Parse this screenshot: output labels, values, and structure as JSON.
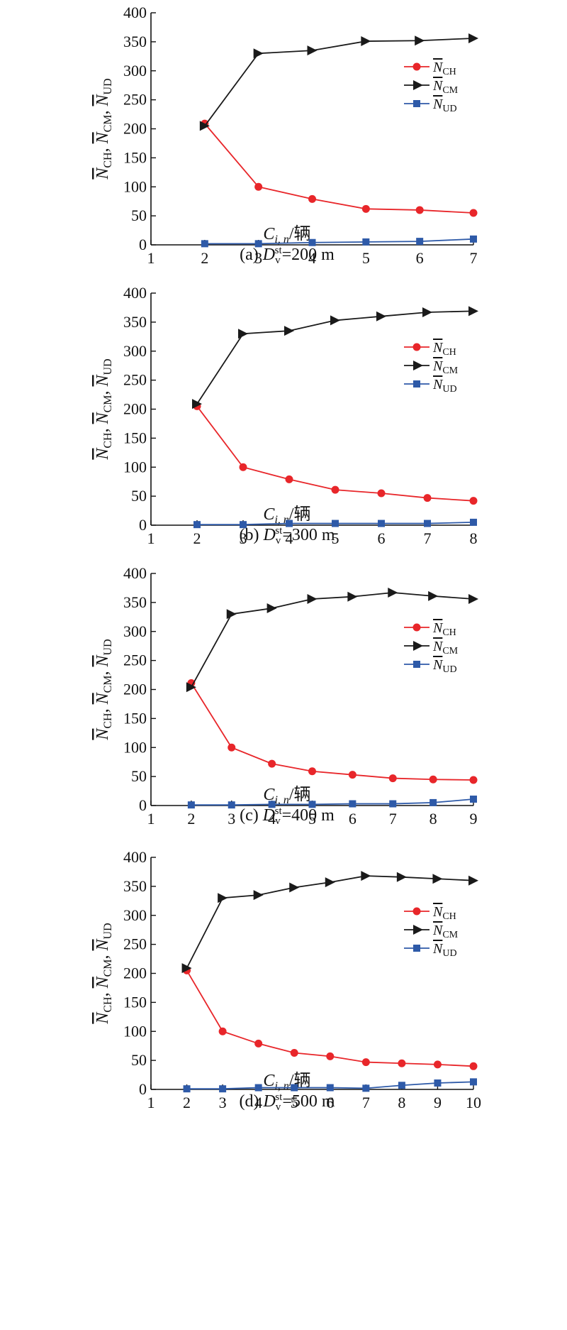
{
  "chart_data": [
    {
      "type": "line",
      "ylabel": "N̄CH, N̄CM, N̄UD",
      "ylabel_parts": [
        "N",
        "CH",
        ", ",
        "N",
        "CM",
        ", ",
        "N",
        "UD"
      ],
      "xlabel": "Ci, n/辆",
      "xlabel_parts": [
        "C",
        "i, n",
        "/辆"
      ],
      "caption": "(a) Dvst=200 m",
      "caption_parts": [
        "(a) ",
        "D",
        "v",
        "st",
        "=200 m"
      ],
      "xlim": [
        1,
        7
      ],
      "ylim": [
        0,
        400
      ],
      "xticks": [
        "1",
        "2",
        "3",
        "4",
        "5",
        "6",
        "7"
      ],
      "yticks": [
        "0",
        "50",
        "100",
        "150",
        "200",
        "250",
        "300",
        "350",
        "400"
      ],
      "legend_position": "upper right",
      "x": [
        2,
        3,
        4,
        5,
        6,
        7
      ],
      "series": [
        {
          "name": "N̄CH",
          "name_parts": [
            "N",
            "CH"
          ],
          "color": "#e8262a",
          "marker": "circle",
          "values": [
            209,
            100,
            79,
            62,
            60,
            55
          ]
        },
        {
          "name": "N̄CM",
          "name_parts": [
            "N",
            "CM"
          ],
          "color": "#1a1a1a",
          "marker": "triangle-right",
          "values": [
            205,
            330,
            335,
            351,
            352,
            356
          ]
        },
        {
          "name": "N̄UD",
          "name_parts": [
            "N",
            "UD"
          ],
          "color": "#2e5aa8",
          "marker": "square",
          "values": [
            2,
            2,
            4,
            5,
            6,
            10
          ]
        }
      ]
    },
    {
      "type": "line",
      "ylabel": "N̄CH, N̄CM, N̄UD",
      "ylabel_parts": [
        "N",
        "CH",
        ", ",
        "N",
        "CM",
        ", ",
        "N",
        "UD"
      ],
      "xlabel": "Ci, n/辆",
      "xlabel_parts": [
        "C",
        "i, n",
        "/辆"
      ],
      "caption": "(b) Dvst=300 m",
      "caption_parts": [
        "(b) ",
        "D",
        "v",
        "st",
        "=300 m"
      ],
      "xlim": [
        1,
        8
      ],
      "ylim": [
        0,
        400
      ],
      "xticks": [
        "1",
        "2",
        "3",
        "4",
        "5",
        "6",
        "7",
        "8"
      ],
      "yticks": [
        "0",
        "50",
        "100",
        "150",
        "200",
        "250",
        "300",
        "350",
        "400"
      ],
      "legend_position": "upper right",
      "x": [
        2,
        3,
        4,
        5,
        6,
        7,
        8
      ],
      "series": [
        {
          "name": "N̄CH",
          "name_parts": [
            "N",
            "CH"
          ],
          "color": "#e8262a",
          "marker": "circle",
          "values": [
            205,
            100,
            79,
            61,
            55,
            47,
            42
          ]
        },
        {
          "name": "N̄CM",
          "name_parts": [
            "N",
            "CM"
          ],
          "color": "#1a1a1a",
          "marker": "triangle-right",
          "values": [
            209,
            330,
            335,
            353,
            360,
            367,
            369
          ]
        },
        {
          "name": "N̄UD",
          "name_parts": [
            "N",
            "UD"
          ],
          "color": "#2e5aa8",
          "marker": "square",
          "values": [
            1,
            1,
            3,
            3,
            3,
            3,
            5
          ]
        }
      ]
    },
    {
      "type": "line",
      "ylabel": "N̄CH, N̄CM, N̄UD",
      "ylabel_parts": [
        "N",
        "CH",
        ", ",
        "N",
        "CM",
        ", ",
        "N",
        "UD"
      ],
      "xlabel": "Ci, n/辆",
      "xlabel_parts": [
        "C",
        "i, n",
        "/辆"
      ],
      "caption": "(c) Dvst=400 m",
      "caption_parts": [
        "(c) ",
        "D",
        "v",
        "st",
        "=400 m"
      ],
      "xlim": [
        1,
        9
      ],
      "ylim": [
        0,
        400
      ],
      "xticks": [
        "1",
        "2",
        "3",
        "4",
        "5",
        "6",
        "7",
        "8",
        "9"
      ],
      "yticks": [
        "0",
        "50",
        "100",
        "150",
        "200",
        "250",
        "300",
        "350",
        "400"
      ],
      "legend_position": "upper right",
      "x": [
        2,
        3,
        4,
        5,
        6,
        7,
        8,
        9
      ],
      "series": [
        {
          "name": "N̄CH",
          "name_parts": [
            "N",
            "CH"
          ],
          "color": "#e8262a",
          "marker": "circle",
          "values": [
            211,
            100,
            72,
            59,
            53,
            47,
            45,
            44
          ]
        },
        {
          "name": "N̄CM",
          "name_parts": [
            "N",
            "CM"
          ],
          "color": "#1a1a1a",
          "marker": "triangle-right",
          "values": [
            204,
            330,
            340,
            356,
            360,
            367,
            361,
            356
          ]
        },
        {
          "name": "N̄UD",
          "name_parts": [
            "N",
            "UD"
          ],
          "color": "#2e5aa8",
          "marker": "square",
          "values": [
            1,
            1,
            2,
            2,
            3,
            3,
            5,
            11
          ]
        }
      ]
    },
    {
      "type": "line",
      "ylabel": "N̄CH, N̄CM, N̄UD",
      "ylabel_parts": [
        "N",
        "CH",
        ", ",
        "N",
        "CM",
        ", ",
        "N",
        "UD"
      ],
      "xlabel": "Ci, n/辆",
      "xlabel_parts": [
        "C",
        "i, n",
        "/辆"
      ],
      "caption": "(d) Dvst=500 m",
      "caption_parts": [
        "(d) ",
        "D",
        "v",
        "st",
        "=500 m"
      ],
      "xlim": [
        1,
        10
      ],
      "ylim": [
        0,
        400
      ],
      "xticks": [
        "1",
        "2",
        "3",
        "4",
        "5",
        "6",
        "7",
        "8",
        "9",
        "10"
      ],
      "yticks": [
        "0",
        "50",
        "100",
        "150",
        "200",
        "250",
        "300",
        "350",
        "400"
      ],
      "legend_position": "upper right",
      "x": [
        2,
        3,
        4,
        5,
        6,
        7,
        8,
        9,
        10
      ],
      "series": [
        {
          "name": "N̄CH",
          "name_parts": [
            "N",
            "CH"
          ],
          "color": "#e8262a",
          "marker": "circle",
          "values": [
            205,
            100,
            79,
            63,
            57,
            47,
            45,
            43,
            40
          ]
        },
        {
          "name": "N̄CM",
          "name_parts": [
            "N",
            "CM"
          ],
          "color": "#1a1a1a",
          "marker": "triangle-right",
          "values": [
            209,
            330,
            335,
            348,
            357,
            368,
            366,
            363,
            360
          ]
        },
        {
          "name": "N̄UD",
          "name_parts": [
            "N",
            "UD"
          ],
          "color": "#2e5aa8",
          "marker": "square",
          "values": [
            1,
            1,
            3,
            3,
            3,
            2,
            7,
            11,
            13
          ]
        }
      ]
    }
  ]
}
